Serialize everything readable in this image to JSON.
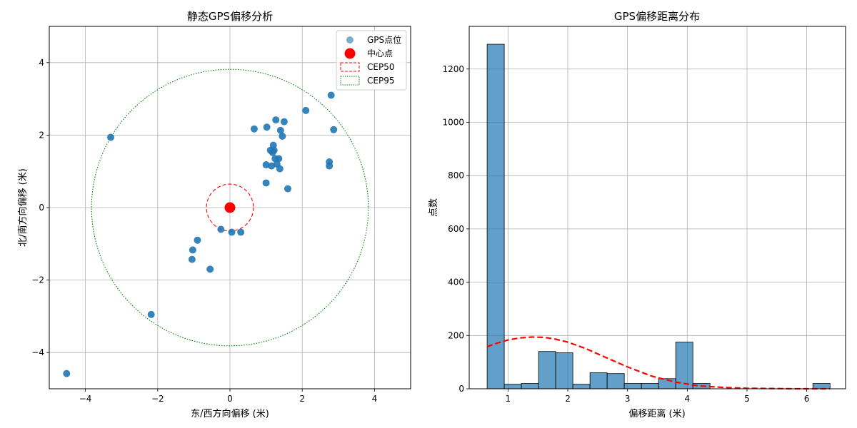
{
  "chart_data": [
    {
      "type": "scatter",
      "title": "静态GPS偏移分析",
      "xlabel": "东/西方向偏移 (米)",
      "ylabel": "北/南方向偏移 (米)",
      "xlim": [
        -5,
        5
      ],
      "ylim": [
        -5,
        5
      ],
      "xticks": [
        -4,
        -2,
        0,
        2,
        4
      ],
      "yticks": [
        -4,
        -2,
        0,
        2,
        4
      ],
      "xtick_labels": [
        "−4",
        "−2",
        "0",
        "2",
        "4"
      ],
      "ytick_labels": [
        "−4",
        "−2",
        "0",
        "2",
        "4"
      ],
      "grid": true,
      "legend_position": "top-right",
      "series": [
        {
          "name": "GPS点位",
          "kind": "points",
          "color": "#1f77b4",
          "x": [
            -4.52,
            -3.3,
            -2.18,
            -1.05,
            -1.03,
            -0.9,
            -0.55,
            -0.25,
            0.05,
            0.3,
            0.67,
            1.0,
            1.0,
            1.02,
            1.12,
            1.15,
            1.18,
            1.2,
            1.22,
            1.25,
            1.27,
            1.3,
            1.35,
            1.38,
            1.4,
            1.45,
            1.5,
            1.6,
            2.1,
            2.75,
            2.75,
            2.8,
            2.87
          ],
          "y": [
            -4.58,
            1.94,
            -2.95,
            -1.43,
            -1.17,
            -0.9,
            -1.7,
            -0.6,
            -0.68,
            -0.68,
            2.17,
            1.18,
            0.68,
            2.22,
            1.58,
            1.15,
            1.52,
            1.72,
            1.58,
            1.35,
            2.42,
            1.2,
            1.35,
            1.07,
            2.13,
            1.97,
            2.37,
            0.52,
            2.68,
            1.15,
            1.26,
            3.1,
            2.15
          ]
        },
        {
          "name": "中心点",
          "kind": "center",
          "color": "#ff0000",
          "x": [
            0
          ],
          "y": [
            0
          ]
        },
        {
          "name": "CEP50",
          "kind": "circle",
          "color": "#ff0000",
          "line_style": "dashed",
          "radius": 0.65
        },
        {
          "name": "CEP95",
          "kind": "circle",
          "color": "#008000",
          "line_style": "dotted",
          "radius": 3.83
        }
      ]
    },
    {
      "type": "bar",
      "title": "GPS偏移距离分布",
      "xlabel": "偏移距离 (米)",
      "ylabel": "点数",
      "xlim": [
        0.35,
        6.65
      ],
      "ylim": [
        0,
        1360
      ],
      "xticks": [
        1,
        2,
        3,
        4,
        5,
        6
      ],
      "yticks": [
        0,
        200,
        400,
        600,
        800,
        1000,
        1200
      ],
      "xtick_labels": [
        "1",
        "2",
        "3",
        "4",
        "5",
        "6"
      ],
      "ytick_labels": [
        "0",
        "200",
        "400",
        "600",
        "800",
        "1000",
        "1200"
      ],
      "grid": true,
      "bar_color": "#1f77b4",
      "bin_edges": [
        0.65,
        0.937,
        1.224,
        1.511,
        1.798,
        2.085,
        2.372,
        2.659,
        2.946,
        3.233,
        3.52,
        3.807,
        4.094,
        4.381,
        4.668,
        4.955,
        5.242,
        5.529,
        5.816,
        6.103,
        6.39
      ],
      "values": [
        1293,
        17,
        20,
        140,
        135,
        17,
        60,
        57,
        20,
        20,
        38,
        175,
        20,
        0,
        0,
        0,
        0,
        0,
        0,
        20
      ],
      "curve": {
        "color": "#ff0000",
        "line_style": "dashed",
        "x": [
          0.65,
          0.8,
          1.0,
          1.2,
          1.4,
          1.6,
          1.8,
          2.0,
          2.3,
          2.6,
          3.0,
          3.4,
          3.8,
          4.2,
          4.6,
          5.0,
          5.4,
          5.8,
          6.2,
          6.39
        ],
        "y": [
          158,
          170,
          183,
          191,
          194,
          193,
          186,
          175,
          151,
          121,
          82,
          48,
          25,
          11,
          5,
          2,
          1,
          0,
          0,
          0
        ]
      }
    }
  ]
}
